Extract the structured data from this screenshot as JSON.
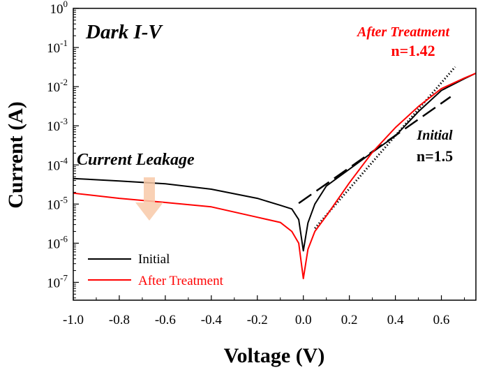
{
  "chart_data": {
    "type": "line",
    "title": "",
    "xlabel": "Voltage (V)",
    "ylabel": "Current (A)",
    "xlim": [
      -1.0,
      0.75
    ],
    "ylim": [
      3.5e-08,
      1
    ],
    "yscale": "log",
    "grid": false,
    "legend_placement": "bottom-left",
    "x_ticks": [
      "-1.0",
      "-0.8",
      "-0.6",
      "-0.4",
      "-0.2",
      "0.0",
      "0.2",
      "0.4",
      "0.6"
    ],
    "y_ticks": [
      {
        "base": "10",
        "exp": "0"
      },
      {
        "base": "10",
        "exp": "-1"
      },
      {
        "base": "10",
        "exp": "-2"
      },
      {
        "base": "10",
        "exp": "-3"
      },
      {
        "base": "10",
        "exp": "-4"
      },
      {
        "base": "10",
        "exp": "-5"
      },
      {
        "base": "10",
        "exp": "-6"
      },
      {
        "base": "10",
        "exp": "-7"
      }
    ],
    "series": [
      {
        "name": "Initial",
        "color": "#000000",
        "style": "solid",
        "x": [
          -1.0,
          -0.8,
          -0.6,
          -0.4,
          -0.2,
          -0.1,
          -0.05,
          -0.02,
          0.0,
          0.02,
          0.05,
          0.1,
          0.2,
          0.3,
          0.4,
          0.5,
          0.6,
          0.7,
          0.75
        ],
        "y": [
          4.5e-05,
          3.9e-05,
          3.3e-05,
          2.4e-05,
          1.4e-05,
          9.3e-06,
          7.5e-06,
          4e-06,
          6.4e-07,
          3.3e-06,
          1e-05,
          2.9e-05,
          7.8e-05,
          0.00021,
          0.00055,
          0.0023,
          0.008,
          0.016,
          0.022
        ]
      },
      {
        "name": "After Treatment",
        "color": "#ff0000",
        "style": "solid",
        "x": [
          -1.0,
          -0.8,
          -0.6,
          -0.4,
          -0.2,
          -0.1,
          -0.05,
          -0.02,
          0.0,
          0.02,
          0.05,
          0.1,
          0.2,
          0.3,
          0.4,
          0.5,
          0.6,
          0.7,
          0.75
        ],
        "y": [
          1.9e-05,
          1.4e-05,
          1.1e-05,
          8.5e-06,
          4.6e-06,
          3.4e-06,
          2e-06,
          1e-06,
          1.25e-07,
          7e-07,
          2e-06,
          5e-06,
          3.5e-05,
          0.00021,
          0.0009,
          0.0031,
          0.0089,
          0.0166,
          0.022
        ]
      }
    ],
    "fit_lines": [
      {
        "label": "Initial",
        "n": "n=1.5",
        "color": "#000000",
        "style": "dashed",
        "x": [
          -0.02,
          0.64
        ],
        "y": [
          1.05e-05,
          0.0055
        ]
      },
      {
        "label": "After Treatment",
        "n": "n=1.42",
        "color": "#000000",
        "style": "dotted",
        "x": [
          0.05,
          0.66
        ],
        "y": [
          2.4e-06,
          0.032
        ]
      }
    ],
    "annotations": {
      "panel": "Dark I-V",
      "leakage": "Current Leakage",
      "after_label": "After Treatment",
      "after_n": "n=1.42",
      "initial_label": "Initial",
      "initial_n": "n=1.5",
      "arrow_color": "#f8c9a8",
      "arrow_direction": "down"
    }
  }
}
